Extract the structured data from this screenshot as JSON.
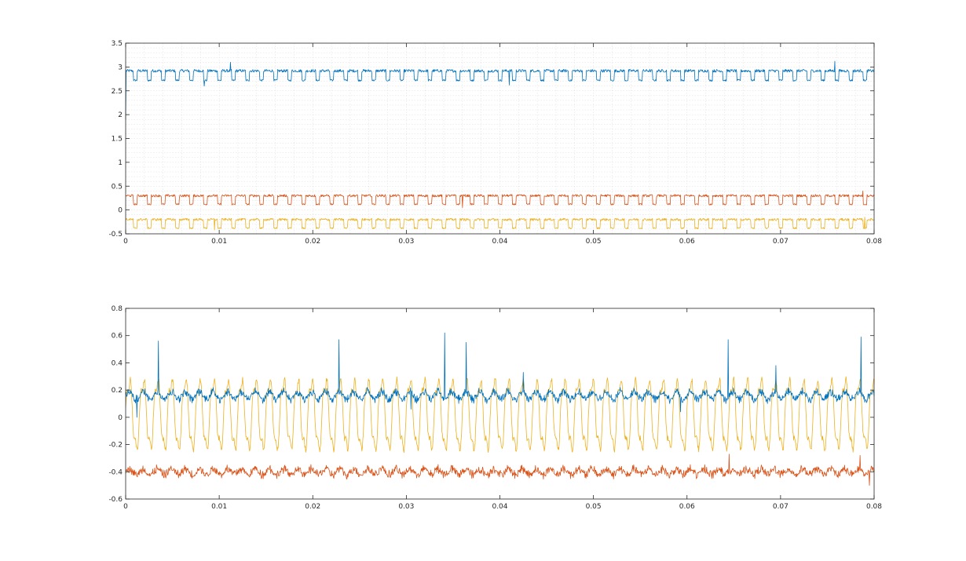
{
  "colors": {
    "series1": "#0072BD",
    "series2": "#D95319",
    "series3": "#EDB120",
    "axis": "#262626",
    "grid": "#dcdcdc"
  },
  "chart_data": [
    {
      "type": "line",
      "title": "",
      "xlabel": "",
      "ylabel": "",
      "xlim": [
        0,
        0.08
      ],
      "ylim": [
        -0.5,
        3.5
      ],
      "xticks": [
        0,
        0.01,
        0.02,
        0.03,
        0.04,
        0.05,
        0.06,
        0.07,
        0.08
      ],
      "xtick_labels": [
        "0",
        "0.01",
        "0.02",
        "0.03",
        "0.04",
        "0.05",
        "0.06",
        "0.07",
        "0.08"
      ],
      "yticks": [
        -0.5,
        0,
        0.5,
        1,
        1.5,
        2,
        2.5,
        3,
        3.5
      ],
      "ytick_labels": [
        "-0.5",
        "0",
        "0.5",
        "1",
        "1.5",
        "2",
        "2.5",
        "3",
        "3.5"
      ],
      "grid": "minor",
      "legend": "none",
      "series": [
        {
          "color_key": "series1",
          "kind": "pulse",
          "start": 1.9,
          "high": 2.92,
          "low": 2.72,
          "period_s": 0.0015,
          "noise": 0.03,
          "spikes": [
            [
              0.0112,
              3.1
            ],
            [
              0.0758,
              3.12
            ],
            [
              0.0084,
              2.6
            ],
            [
              0.041,
              2.62
            ]
          ]
        },
        {
          "color_key": "series2",
          "kind": "pulse",
          "high": 0.3,
          "low": 0.12,
          "period_s": 0.0015,
          "noise": 0.025,
          "spikes": [
            [
              0.0788,
              0.4
            ],
            [
              0.036,
              0.05
            ]
          ]
        },
        {
          "color_key": "series3",
          "kind": "pulse",
          "high": -0.2,
          "low": -0.38,
          "period_s": 0.0015,
          "noise": 0.025,
          "spikes": [
            [
              0.079,
              -0.15
            ],
            [
              0.0095,
              -0.42
            ]
          ]
        }
      ]
    },
    {
      "type": "line",
      "title": "",
      "xlabel": "",
      "ylabel": "",
      "xlim": [
        0,
        0.08
      ],
      "ylim": [
        -0.6,
        0.8
      ],
      "xticks": [
        0,
        0.01,
        0.02,
        0.03,
        0.04,
        0.05,
        0.06,
        0.07,
        0.08
      ],
      "xtick_labels": [
        "0",
        "0.01",
        "0.02",
        "0.03",
        "0.04",
        "0.05",
        "0.06",
        "0.07",
        "0.08"
      ],
      "yticks": [
        -0.6,
        -0.4,
        -0.2,
        0,
        0.2,
        0.4,
        0.6,
        0.8
      ],
      "ytick_labels": [
        "-0.6",
        "-0.4",
        "-0.2",
        "0",
        "0.2",
        "0.4",
        "0.6",
        "0.8"
      ],
      "grid": "off",
      "legend": "none",
      "series": [
        {
          "color_key": "series3",
          "kind": "oscillation",
          "center": 0.02,
          "amplitude": 0.25,
          "period_s": 0.0015,
          "noise": 0.02,
          "spikes": []
        },
        {
          "color_key": "series1",
          "kind": "noisy",
          "center": 0.16,
          "amplitude": 0.04,
          "period_s": 0.0015,
          "noise": 0.02,
          "spikes": [
            [
              0.0035,
              0.56
            ],
            [
              0.0228,
              0.57
            ],
            [
              0.0341,
              0.62
            ],
            [
              0.0364,
              0.55
            ],
            [
              0.0644,
              0.57
            ],
            [
              0.0695,
              0.38
            ],
            [
              0.0786,
              0.59
            ],
            [
              0.0012,
              0.0
            ],
            [
              0.0305,
              0.06
            ],
            [
              0.0593,
              0.04
            ],
            [
              0.0425,
              0.33
            ]
          ]
        },
        {
          "color_key": "series2",
          "kind": "noisy",
          "center": -0.4,
          "amplitude": 0.03,
          "period_s": 0.0015,
          "noise": 0.025,
          "spikes": [
            [
              0.0645,
              -0.27
            ],
            [
              0.0785,
              -0.28
            ],
            [
              0.0795,
              -0.5
            ]
          ]
        }
      ]
    }
  ]
}
